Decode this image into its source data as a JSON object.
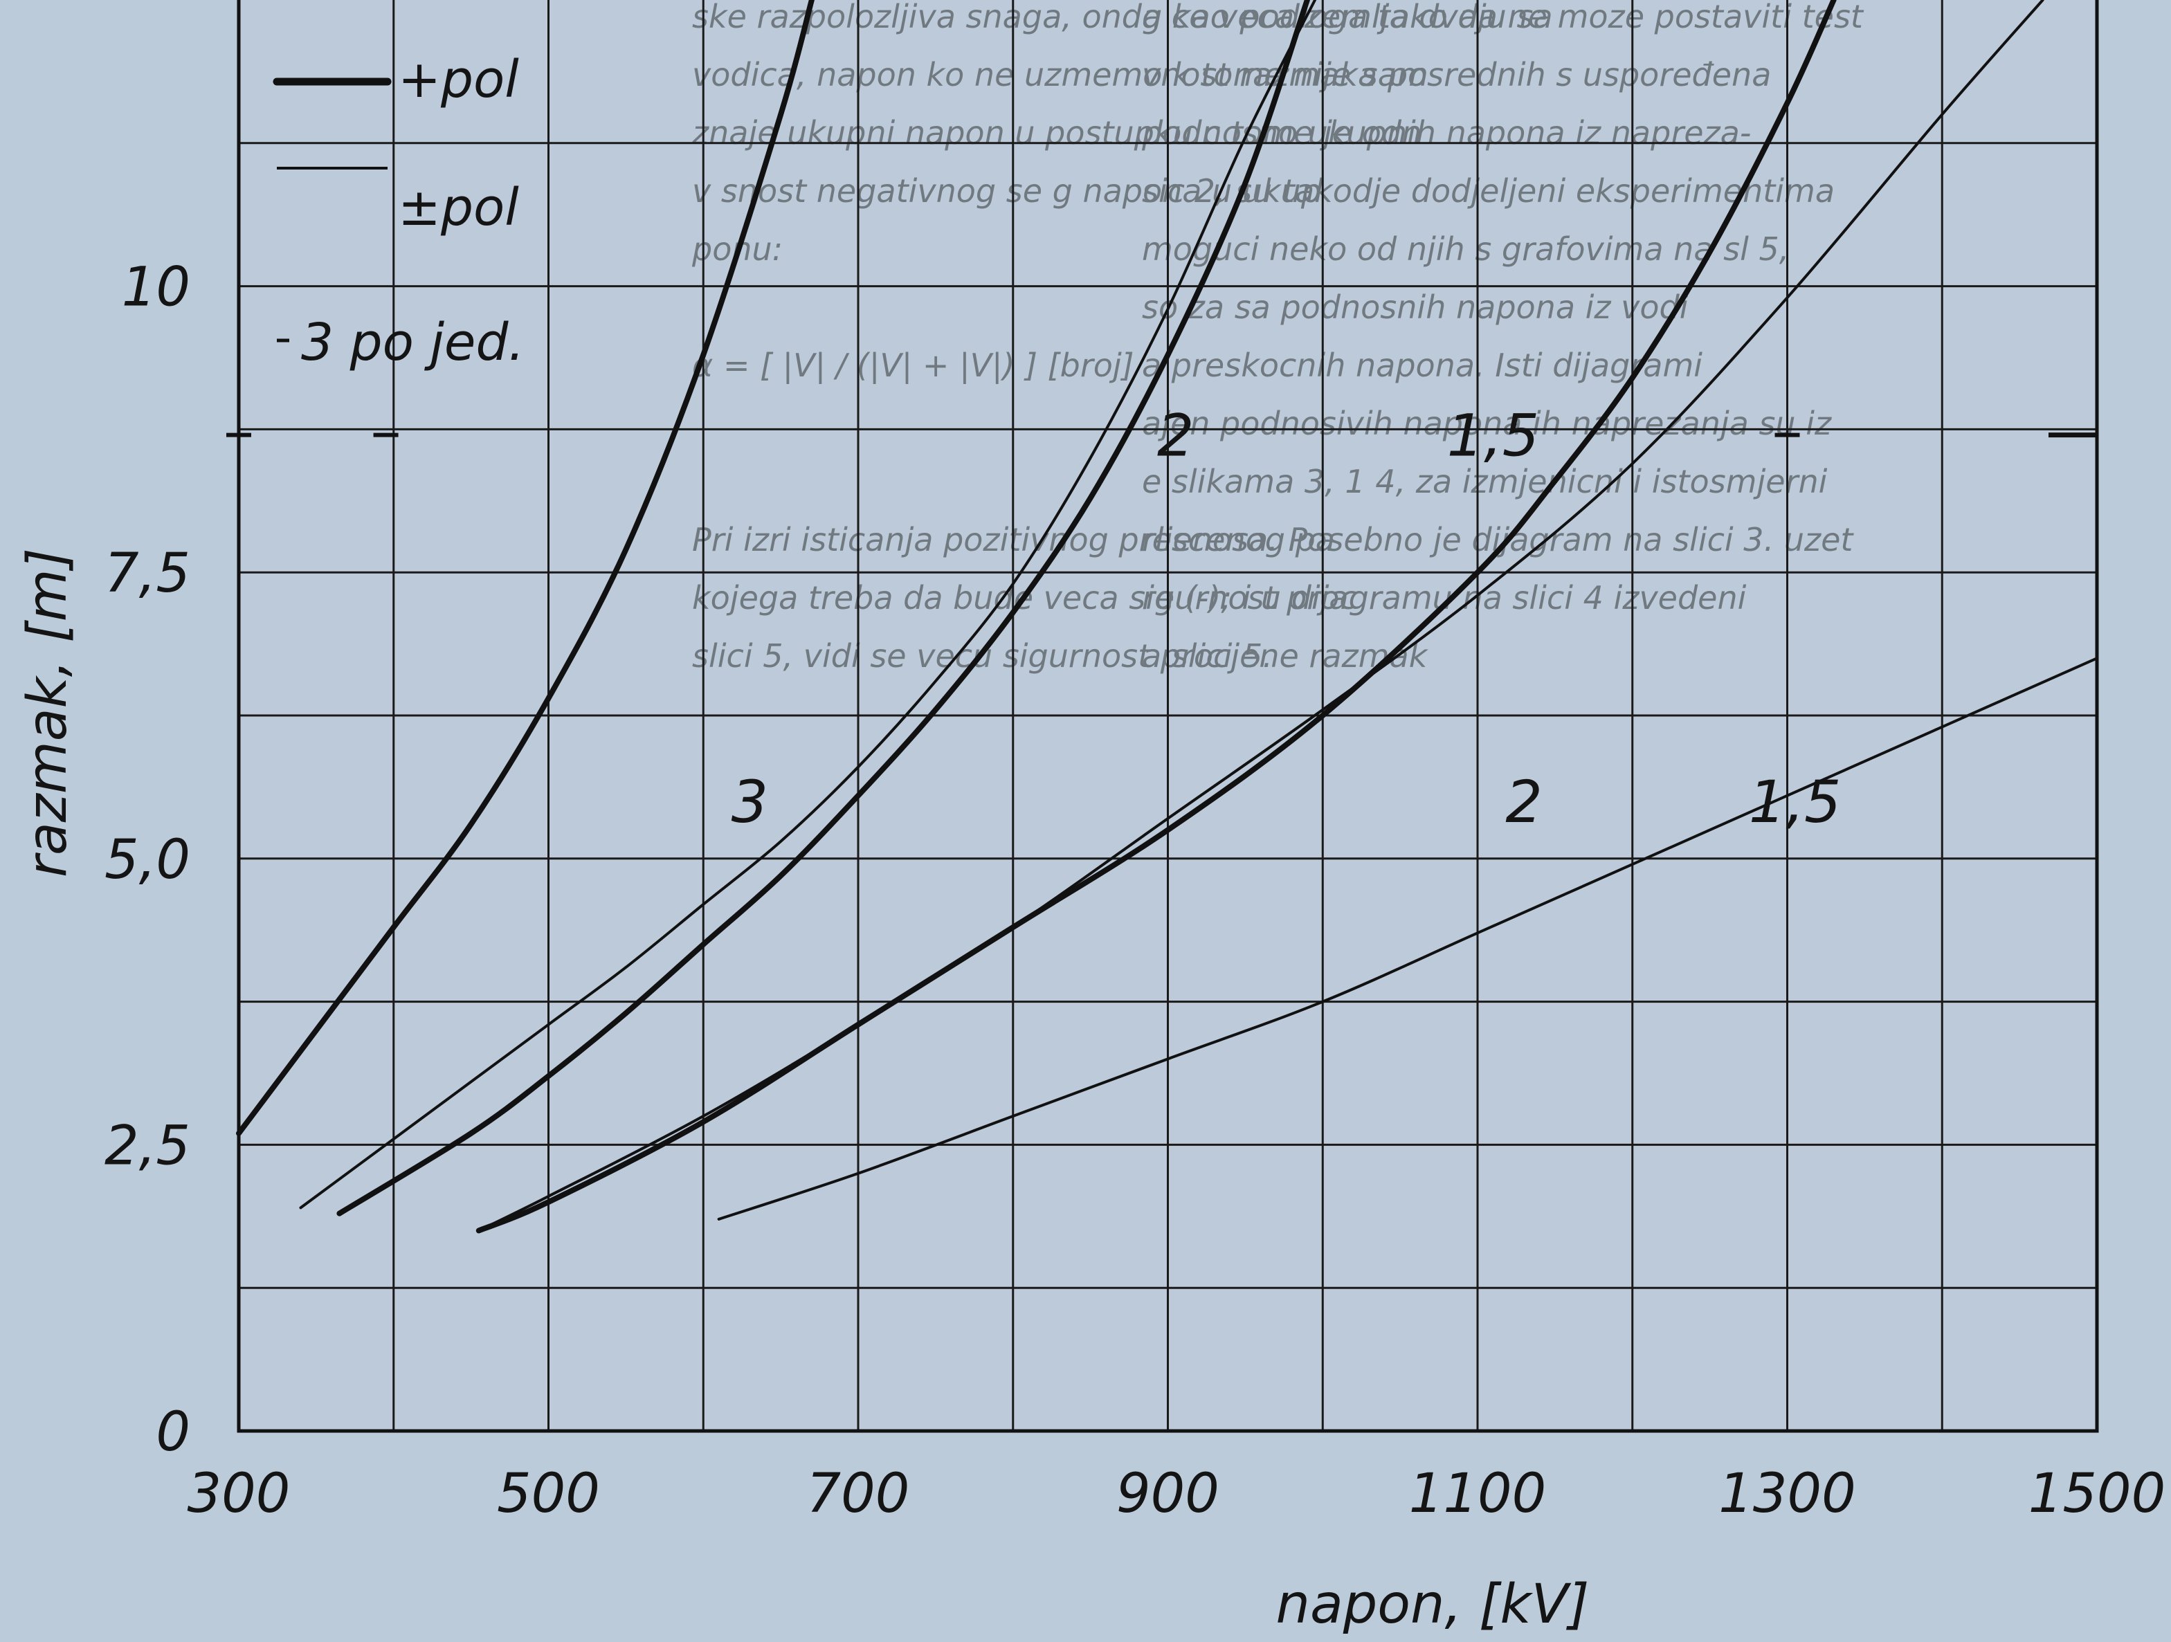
{
  "chart_data": {
    "type": "line",
    "title": "",
    "xlabel": "napon, [kV]",
    "ylabel": "razmak, [m]",
    "xlim": [
      300,
      1500
    ],
    "ylim": [
      0,
      12.5
    ],
    "x_ticks": [
      300,
      500,
      700,
      900,
      1100,
      1300,
      1500
    ],
    "x_tick_labels": [
      "300",
      "500",
      "700",
      "900",
      "1100",
      "1300",
      "1500"
    ],
    "y_ticks": [
      0,
      2.5,
      5.0,
      7.5,
      10
    ],
    "y_tick_labels": [
      "0",
      "2,5",
      "5,0",
      "7,5",
      "10"
    ],
    "grid": true,
    "legend": {
      "placement": "top-left",
      "entries": [
        {
          "label": "+pol",
          "style": "thick"
        },
        {
          "label": "±pol",
          "style": "thin"
        },
        {
          "label": "3 po jed.",
          "style": "dash"
        }
      ]
    },
    "series": [
      {
        "label": "3",
        "style": "+pol",
        "x": [
          300,
          350,
          400,
          450,
          500,
          550,
          600,
          650,
          670
        ],
        "y": [
          2.6,
          3.5,
          4.4,
          5.3,
          6.4,
          7.7,
          9.4,
          11.5,
          12.5
        ]
      },
      {
        "label": "3",
        "style": "±pol",
        "x": [
          340,
          400,
          450,
          500,
          550,
          600,
          650,
          700,
          750,
          800,
          850,
          900,
          950,
          995
        ],
        "y": [
          1.95,
          2.55,
          3.05,
          3.55,
          4.05,
          4.6,
          5.15,
          5.8,
          6.55,
          7.4,
          8.5,
          9.8,
          11.3,
          12.5
        ]
      },
      {
        "label": "2",
        "style": "+pol",
        "x": [
          365,
          450,
          500,
          550,
          600,
          650,
          700,
          750,
          800,
          850,
          900,
          950,
          990
        ],
        "y": [
          1.9,
          2.6,
          3.1,
          3.65,
          4.25,
          4.85,
          5.55,
          6.3,
          7.15,
          8.15,
          9.4,
          10.9,
          12.5
        ]
      },
      {
        "label": "2",
        "style": "±pol",
        "x": [
          455,
          500,
          600,
          700,
          800,
          900,
          1000,
          1100,
          1200,
          1300,
          1400,
          1465
        ],
        "y": [
          1.75,
          2.05,
          2.75,
          3.55,
          4.4,
          5.35,
          6.3,
          7.3,
          8.45,
          9.9,
          11.5,
          12.5
        ]
      },
      {
        "label": "1,5",
        "style": "+pol",
        "x": [
          455,
          500,
          600,
          700,
          800,
          900,
          1000,
          1100,
          1150,
          1200,
          1250,
          1300,
          1330
        ],
        "y": [
          1.75,
          2.0,
          2.7,
          3.55,
          4.4,
          5.25,
          6.25,
          7.5,
          8.3,
          9.2,
          10.3,
          11.6,
          12.5
        ]
      },
      {
        "label": "1,5",
        "style": "±pol",
        "x": [
          610,
          700,
          800,
          900,
          1000,
          1100,
          1200,
          1300,
          1400,
          1500
        ],
        "y": [
          1.85,
          2.25,
          2.75,
          3.25,
          3.75,
          4.35,
          4.95,
          5.55,
          6.15,
          6.75
        ]
      }
    ],
    "curve_labels": [
      {
        "text": "3",
        "x": 630,
        "y": 5.5
      },
      {
        "text": "2",
        "x": 905,
        "y": 8.7
      },
      {
        "text": "1,5",
        "x": 1110,
        "y": 8.7
      },
      {
        "text": "2",
        "x": 1130,
        "y": 5.5
      },
      {
        "text": "1,5",
        "x": 1305,
        "y": 5.5
      }
    ],
    "dash_markers": [
      {
        "x": 300,
        "y": 8.7
      },
      {
        "x": 395,
        "y": 8.7
      },
      {
        "x": 1300,
        "y": 8.7
      }
    ]
  },
  "background_text": {
    "left_col": [
      "ske razpolozljiva snaga, onda ce veca zemlja dvaju sa",
      "vodica, napon ko ne uzmemo k tome nije sam",
      "znaje ukupni napon u postupku c tome je odn",
      "v snost negativnog se g napona u ukup",
      "ponu:",
      "",
      "α = [ |V| / (|V| + |V|) ]   [broj]",
      "",
      "",
      "Pri izri isticanja pozitivnog prescenog pa",
      "kojega treba da bude veca sigurnost proc",
      "slici 5, vidi se vecu sigurnost procjene razmak"
    ],
    "right_col": [
      "g kao podloga tako da ne moze postaviti test",
      "vnost razmaka posrednih s uspoređena",
      "podnosno ukupnih napona iz napreza-",
      "sic 2, su takodje dodjeljeni eksperimentima",
      "moguci neko od njih s grafovima na sl 5,",
      "so za sa podnosnih napona iz vodi",
      "a preskocnih napona. Isti dijagrami",
      "ajen podnosivih napona ih naprezanja su iz",
      "e slikama 3, 1 4, za izmjenicni i istosmjerni",
      "rlienosa. Posebno je dijagram na slici 3. uzet",
      "re (-); i u dijagramu na slici 4 izvedeni",
      "a slici 5."
    ]
  }
}
